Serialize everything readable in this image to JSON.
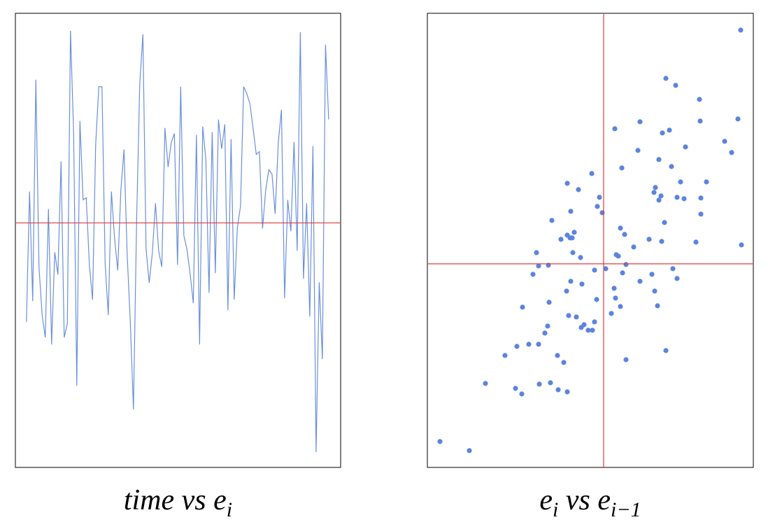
{
  "chart_data": [
    {
      "type": "line",
      "color": "#6a8fdc",
      "ref_color": "#e03c3c",
      "hlines": [
        0
      ],
      "label": [
        {
          "text": "time vs e"
        },
        {
          "subscript": "i"
        }
      ],
      "xlim": [
        -3.5,
        99.8
      ],
      "ylim": [
        -3.5,
        3.0
      ],
      "x": [
        0,
        1,
        2,
        3,
        4,
        5,
        6,
        7,
        8,
        9,
        10,
        11,
        12,
        13,
        14,
        15,
        16,
        17,
        18,
        19,
        20,
        21,
        22,
        23,
        24,
        25,
        26,
        27,
        28,
        29,
        30,
        31,
        32,
        33,
        34,
        35,
        36,
        37,
        38,
        39,
        40,
        41,
        42,
        43,
        44,
        45,
        46,
        47,
        48,
        49,
        50,
        51,
        52,
        53,
        54,
        55,
        56,
        57,
        58,
        59,
        60,
        61,
        62,
        63,
        64,
        65,
        66,
        67,
        68,
        69,
        70,
        71,
        72,
        73,
        74,
        75,
        76,
        77,
        78,
        79,
        80,
        81,
        82,
        83,
        84,
        85,
        86,
        87,
        88,
        89,
        90,
        91,
        92,
        93,
        94,
        95,
        96
      ],
      "values": [
        -1.42,
        0.45,
        -1.12,
        2.05,
        -0.64,
        -1.32,
        -1.64,
        0.2,
        -1.74,
        -0.42,
        -0.74,
        0.88,
        -1.64,
        -1.44,
        2.75,
        1.28,
        -2.33,
        1.46,
        0.33,
        0.36,
        -0.6,
        -1.1,
        1.12,
        1.95,
        1.95,
        -0.58,
        -1.32,
        0.45,
        -0.22,
        -0.68,
        0.47,
        1.05,
        -0.45,
        -1.42,
        -2.67,
        0.03,
        1.99,
        2.7,
        -0.37,
        -0.86,
        -0.43,
        0.28,
        -0.4,
        -0.63,
        1.36,
        0.8,
        1.15,
        1.28,
        -0.6,
        1.95,
        -0.18,
        -0.38,
        -0.73,
        -1.15,
        1.26,
        -1.74,
        1.38,
        0.9,
        -1.0,
        1.3,
        -0.72,
        1.48,
        1.06,
        1.41,
        -1.25,
        1.2,
        -1.1,
        -0.07,
        0.24,
        1.95,
        1.85,
        1.7,
        1.35,
        0.98,
        1.02,
        -0.08,
        0.47,
        0.76,
        0.7,
        0.13,
        1.15,
        1.62,
        -1.08,
        0.33,
        -0.12,
        1.16,
        -0.4,
        2.73,
        -0.8,
        0.28,
        -1.34,
        1.1,
        -3.28,
        -0.85,
        -1.95,
        2.55,
        1.48
      ]
    },
    {
      "type": "scatter",
      "color": "#5b84dd",
      "ref_color": "#e03c3c",
      "hlines": [
        0
      ],
      "vlines": [
        0
      ],
      "label": [
        {
          "text": "e"
        },
        {
          "subscript": "i"
        },
        {
          "text": " vs e"
        },
        {
          "subscript": "i−1"
        }
      ],
      "xlim": [
        -2.52,
        2.14
      ],
      "ylim": [
        -2.91,
        3.58
      ],
      "x": [
        1.96,
        0.89,
        1.03,
        1.37,
        0.16,
        0.52,
        0.84,
        0.94,
        1.38,
        1.92,
        1.17,
        0.49,
        1.73,
        1.83,
        0.79,
        0.97,
        0.26,
        -0.17,
        -0.52,
        -0.36,
        0.74,
        0.72,
        1.1,
        1.47,
        0.82,
        0.79,
        1.05,
        1.15,
        1.39,
        -0.06,
        -0.09,
        -0.02,
        -0.47,
        1.39,
        0.87,
        -0.74,
        0.24,
        -0.42,
        -0.52,
        -0.61,
        -0.48,
        -0.45,
        0.3,
        0.65,
        0.83,
        1.32,
        1.97,
        0.43,
        -0.96,
        -0.44,
        0.18,
        0.21,
        -0.33,
        -0.93,
        -0.79,
        -1.01,
        -0.13,
        0.03,
        0.32,
        0.27,
        0.52,
        0.69,
        0.99,
        1.05,
        -0.47,
        -0.31,
        0.15,
        -0.53,
        0.73,
        -0.78,
        -0.1,
        0.17,
        0.24,
        0.77,
        -1.16,
        -0.5,
        -0.39,
        -0.13,
        -0.28,
        -0.32,
        -0.22,
        -0.16,
        0.11,
        -0.8,
        -0.84,
        -1.07,
        -0.93,
        -1.24,
        -1.41,
        -0.66,
        -0.57,
        0.89,
        0.32,
        -1.69,
        -1.26,
        -1.17,
        -0.92,
        -0.76,
        -0.65,
        -0.52,
        -2.34,
        -1.92
      ],
      "values": [
        3.34,
        2.65,
        2.55,
        2.35,
        1.93,
        2.03,
        1.87,
        1.91,
        2.04,
        2.07,
        1.67,
        1.62,
        1.75,
        1.59,
        1.49,
        1.39,
        1.37,
        1.29,
        1.15,
        1.06,
        1.09,
        1.02,
        1.17,
        1.17,
        0.97,
        0.91,
        0.95,
        0.93,
        0.94,
        0.95,
        0.82,
        0.73,
        0.75,
        0.71,
        0.59,
        0.62,
        0.51,
        0.45,
        0.41,
        0.35,
        0.37,
        0.37,
        0.42,
        0.35,
        0.32,
        0.31,
        0.27,
        0.24,
        0.16,
        0.16,
        0.13,
        0.11,
        0.09,
        -0.03,
        -0.02,
        -0.15,
        -0.09,
        -0.07,
        -0.01,
        -0.13,
        -0.25,
        -0.15,
        -0.07,
        -0.21,
        -0.25,
        -0.29,
        -0.35,
        -0.39,
        -0.39,
        -0.55,
        -0.51,
        -0.49,
        -0.61,
        -0.6,
        -0.62,
        -0.74,
        -0.76,
        -0.83,
        -0.87,
        -0.91,
        -0.95,
        -0.95,
        -0.71,
        -0.89,
        -0.99,
        -1.15,
        -1.15,
        -1.18,
        -1.31,
        -1.31,
        -1.41,
        -1.24,
        -1.37,
        -1.71,
        -1.78,
        -1.86,
        -1.72,
        -1.7,
        -1.8,
        -1.83,
        -2.54,
        -2.67
      ]
    }
  ]
}
